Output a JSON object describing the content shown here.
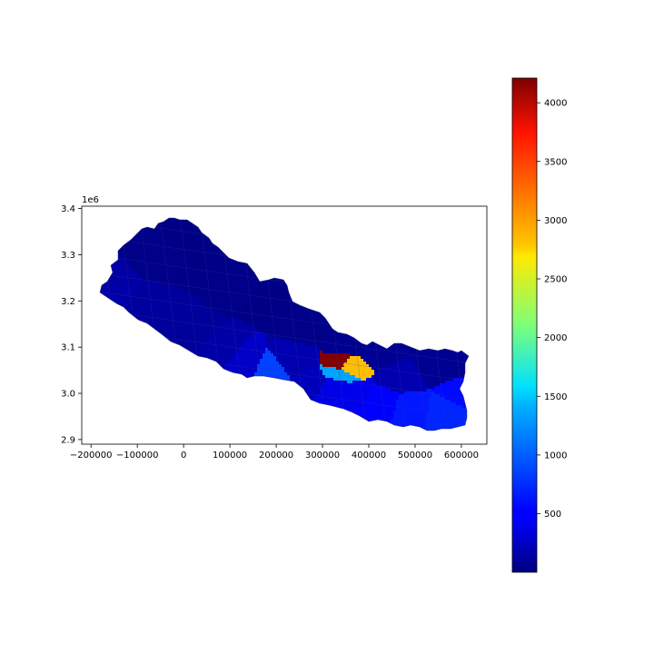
{
  "chart_data": {
    "type": "heatmap",
    "title": "",
    "xlabel": "",
    "ylabel": "",
    "xlim": [
      -220000,
      655000
    ],
    "ylim": [
      2890000,
      3405000
    ],
    "x_ticks": [
      -200000,
      -100000,
      0,
      100000,
      200000,
      300000,
      400000,
      500000,
      600000
    ],
    "x_tick_labels": [
      "−200000",
      "−100000",
      "0",
      "100000",
      "200000",
      "300000",
      "400000",
      "500000",
      "600000"
    ],
    "y_ticks": [
      2900000,
      3000000,
      3100000,
      3200000,
      3300000,
      3400000
    ],
    "y_tick_labels": [
      "2.9",
      "3.0",
      "3.1",
      "3.2",
      "3.3",
      "3.4"
    ],
    "y_offset_text": "1e6",
    "grid": false,
    "colormap": "jet",
    "colorbar": {
      "position": "right",
      "vmin": 1,
      "vmax": 4210,
      "ticks": [
        500,
        1000,
        1500,
        2000,
        2500,
        3000,
        3500,
        4000
      ],
      "tick_labels": [
        "500",
        "1000",
        "1500",
        "2000",
        "2500",
        "3000",
        "3500",
        "4000"
      ]
    },
    "districts": [
      {
        "x": -180000,
        "y": 3240000,
        "value": 150
      },
      {
        "x": -150000,
        "y": 3200000,
        "value": 180
      },
      {
        "x": -100000,
        "y": 3190000,
        "value": 130
      },
      {
        "x": -60000,
        "y": 3160000,
        "value": 120
      },
      {
        "x": 0,
        "y": 3120000,
        "value": 110
      },
      {
        "x": 60000,
        "y": 3090000,
        "value": 160
      },
      {
        "x": 130000,
        "y": 3060000,
        "value": 300
      },
      {
        "x": 180000,
        "y": 3050000,
        "value": 800
      },
      {
        "x": 240000,
        "y": 3070000,
        "value": 200
      },
      {
        "x": 280000,
        "y": 3030000,
        "value": 250
      },
      {
        "x": 320000,
        "y": 3020000,
        "value": 420
      },
      {
        "x": 330000,
        "y": 3045000,
        "value": 1200
      },
      {
        "x": 340000,
        "y": 3065000,
        "value": 4200
      },
      {
        "x": 350000,
        "y": 3062000,
        "value": 2900
      },
      {
        "x": 360000,
        "y": 3000000,
        "value": 450
      },
      {
        "x": 420000,
        "y": 2980000,
        "value": 520
      },
      {
        "x": 490000,
        "y": 2970000,
        "value": 620
      },
      {
        "x": 560000,
        "y": 2965000,
        "value": 680
      },
      {
        "x": 600000,
        "y": 3000000,
        "value": 560
      },
      {
        "x": 470000,
        "y": 3040000,
        "value": 200
      },
      {
        "x": 540000,
        "y": 3060000,
        "value": 80
      },
      {
        "x": 600000,
        "y": 3070000,
        "value": 60
      },
      {
        "x": 420000,
        "y": 3090000,
        "value": 80
      },
      {
        "x": 350000,
        "y": 3110000,
        "value": 60
      },
      {
        "x": 280000,
        "y": 3150000,
        "value": 40
      },
      {
        "x": 200000,
        "y": 3220000,
        "value": 30
      },
      {
        "x": 120000,
        "y": 3250000,
        "value": 35
      },
      {
        "x": 40000,
        "y": 3290000,
        "value": 30
      },
      {
        "x": -40000,
        "y": 3300000,
        "value": 40
      },
      {
        "x": 20000,
        "y": 3350000,
        "value": 25
      }
    ]
  }
}
